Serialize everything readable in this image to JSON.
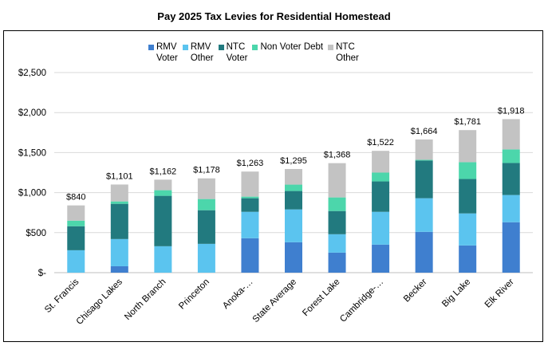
{
  "chart_data": {
    "type": "bar",
    "stacked": true,
    "title": "Pay 2025 Tax Levies for Residential Homestead",
    "xlabel": "",
    "ylabel": "",
    "ylim": [
      0,
      2500
    ],
    "yticks": [
      0,
      500,
      1000,
      1500,
      2000,
      2500
    ],
    "ytick_labels": [
      "$-",
      "$500",
      "$1,000",
      "$1,500",
      "$2,000",
      "$2,500"
    ],
    "grid": true,
    "legend_position": "top",
    "categories": [
      "St. Francis",
      "Chisago Lakes",
      "North Branch",
      "Princeton",
      "Anoka-…",
      "State Average",
      "Forest Lake",
      "Cambridge-…",
      "Becker",
      "Big Lake",
      "Elk River"
    ],
    "totals": [
      840,
      1101,
      1162,
      1178,
      1263,
      1295,
      1368,
      1522,
      1664,
      1781,
      1918
    ],
    "total_labels": [
      "$840",
      "$1,101",
      "$1,162",
      "$1,178",
      "$1,263",
      "$1,295",
      "$1,368",
      "$1,522",
      "$1,664",
      "$1,781",
      "$1,918"
    ],
    "series": [
      {
        "name": "RMV Voter",
        "legend_lines": [
          "RMV",
          "Voter"
        ],
        "color": "#3f7fcf",
        "values": [
          0,
          80,
          0,
          0,
          430,
          380,
          250,
          350,
          510,
          340,
          630
        ]
      },
      {
        "name": "RMV Other",
        "legend_lines": [
          "RMV",
          "Other"
        ],
        "color": "#5bc4ef",
        "values": [
          280,
          340,
          330,
          360,
          330,
          410,
          230,
          410,
          420,
          400,
          340
        ]
      },
      {
        "name": "NTC Voter",
        "legend_lines": [
          "NTC",
          "Voter"
        ],
        "color": "#227a7f",
        "values": [
          300,
          440,
          630,
          420,
          170,
          230,
          290,
          380,
          470,
          430,
          400
        ]
      },
      {
        "name": "Non Voter Debt",
        "legend_lines": [
          "Non Voter Debt"
        ],
        "color": "#4cd6ab",
        "values": [
          70,
          30,
          70,
          140,
          20,
          80,
          170,
          110,
          10,
          210,
          170
        ]
      },
      {
        "name": "NTC Other",
        "legend_lines": [
          "NTC",
          "Other"
        ],
        "color": "#c3c3c3",
        "values": [
          190,
          211,
          132,
          258,
          313,
          195,
          428,
          272,
          254,
          401,
          378
        ]
      }
    ]
  }
}
